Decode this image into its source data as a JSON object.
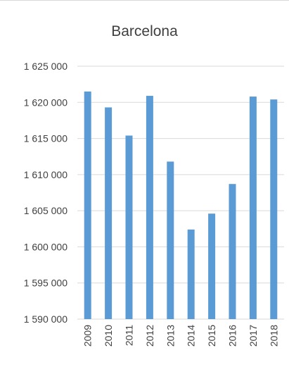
{
  "chart_data": {
    "type": "bar",
    "title": "Barcelona",
    "xlabel": "",
    "ylabel": "",
    "categories": [
      "2009",
      "2010",
      "2011",
      "2012",
      "2013",
      "2014",
      "2015",
      "2016",
      "2017",
      "2018"
    ],
    "values": [
      1621500,
      1619300,
      1615400,
      1620900,
      1611800,
      1602400,
      1604600,
      1608700,
      1620800,
      1620400
    ],
    "ylim": [
      1590000,
      1625000
    ],
    "yticks": [
      1590000,
      1595000,
      1600000,
      1605000,
      1610000,
      1615000,
      1620000,
      1625000
    ],
    "ytick_labels": [
      "1 590 000",
      "1 595 000",
      "1 600 000",
      "1 605 000",
      "1 610 000",
      "1 615 000",
      "1 620 000",
      "1 625 000"
    ],
    "grid": true,
    "legend": "none",
    "bar_color": "#5b9bd5",
    "grid_color": "#d9d9d9",
    "text_color": "#404040"
  }
}
